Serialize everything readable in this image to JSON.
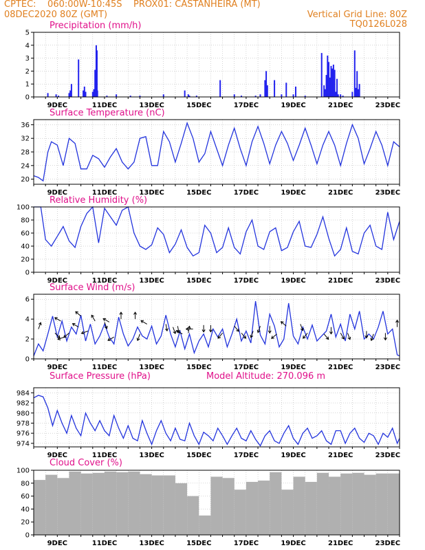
{
  "header": {
    "line1_left": "CPTEC:    060:00W-10:45S    PROX01: CASTANHEIRA (MT)",
    "line2_left": "08DEC2020 80Z (GMT)",
    "line2_right": "Vertical Grid Line: 80Z",
    "line3_right": "TQ0126L028"
  },
  "colors": {
    "header": "#e08020",
    "title": "#e0108a",
    "line": "#2233dd",
    "bar": "#2222ee",
    "cloud": "#b0b0b0"
  },
  "chart_data": [
    {
      "type": "bar",
      "title": "Precipitation (mm/h)",
      "xlim": [
        0,
        15.5
      ],
      "ylim": [
        0,
        5
      ],
      "yticks": [
        0,
        1,
        2,
        3,
        4,
        5
      ],
      "xtick_labels": [
        "9DEC",
        "11DEC",
        "13DEC",
        "15DEC",
        "17DEC",
        "19DEC",
        "21DEC",
        "23DEC"
      ],
      "grid": true,
      "x": [
        0.6,
        0.95,
        1.05,
        1.5,
        1.55,
        1.6,
        1.9,
        2.1,
        2.15,
        2.2,
        2.5,
        2.55,
        2.6,
        2.65,
        2.68,
        2.7,
        3.1,
        3.5,
        4.1,
        4.5,
        5.5,
        6.4,
        6.55,
        6.6,
        6.9,
        7.9,
        8.5,
        8.8,
        9.4,
        9.6,
        9.8,
        9.85,
        9.9,
        10.2,
        10.5,
        10.7,
        11.0,
        11.1,
        11.5,
        12.2,
        12.3,
        12.35,
        12.4,
        12.45,
        12.5,
        12.55,
        12.6,
        12.65,
        12.7,
        12.75,
        12.8,
        12.85,
        12.9,
        13.0,
        13.1,
        13.5,
        13.6,
        13.65,
        13.7,
        13.75,
        13.8
      ],
      "values": [
        0.3,
        0.2,
        0.1,
        0.3,
        0.5,
        1.0,
        2.9,
        0.5,
        0.8,
        0.4,
        0.4,
        0.6,
        2.1,
        4.0,
        3.6,
        0.5,
        0.1,
        0.2,
        0.1,
        0.1,
        0.2,
        0.5,
        0.2,
        0.1,
        0.1,
        1.3,
        0.2,
        0.1,
        0.1,
        0.2,
        1.3,
        2.0,
        0.9,
        1.3,
        0.2,
        1.1,
        0.2,
        0.8,
        0.1,
        3.4,
        0.9,
        0.6,
        1.7,
        3.2,
        2.7,
        1.5,
        2.4,
        2.2,
        2.5,
        2.1,
        0.4,
        1.4,
        0.2,
        0.2,
        0.1,
        0.4,
        3.6,
        0.7,
        2.0,
        0.6,
        1.0
      ]
    },
    {
      "type": "line",
      "title": "Surface Temperature (nC)",
      "xlim": [
        0,
        15.5
      ],
      "ylim": [
        18.5,
        37.5
      ],
      "yticks": [
        20,
        24,
        28,
        32,
        36
      ],
      "xtick_labels": [
        "9DEC",
        "11DEC",
        "13DEC",
        "15DEC",
        "17DEC",
        "19DEC",
        "21DEC",
        "23DEC"
      ],
      "grid": true,
      "x": [
        0,
        0.2,
        0.4,
        0.6,
        0.75,
        1.0,
        1.25,
        1.5,
        1.75,
        2.0,
        2.25,
        2.5,
        2.75,
        3.0,
        3.25,
        3.5,
        3.75,
        4.0,
        4.25,
        4.5,
        4.75,
        5.0,
        5.25,
        5.5,
        5.75,
        6.0,
        6.25,
        6.5,
        6.75,
        7.0,
        7.25,
        7.5,
        7.75,
        8.0,
        8.25,
        8.5,
        8.75,
        9.0,
        9.25,
        9.5,
        9.75,
        10.0,
        10.25,
        10.5,
        10.75,
        11.0,
        11.25,
        11.5,
        11.75,
        12.0,
        12.25,
        12.5,
        12.75,
        13.0,
        13.25,
        13.5,
        13.75,
        14.0,
        14.25,
        14.5,
        14.75,
        15.0,
        15.25,
        15.5
      ],
      "values": [
        21,
        20.5,
        19.5,
        28,
        31,
        30,
        24,
        32,
        30.5,
        23,
        23,
        27,
        26,
        23.5,
        26.5,
        29,
        25,
        23,
        25,
        32,
        32.5,
        24,
        24,
        34,
        31,
        25,
        30.5,
        36.5,
        32,
        25,
        27.5,
        34,
        29,
        24,
        30,
        35,
        29,
        24,
        31,
        35.5,
        30.5,
        24.5,
        30,
        34,
        30.5,
        25.5,
        30,
        35,
        30,
        24.5,
        30,
        34,
        30,
        24,
        30.5,
        36,
        32,
        24.5,
        29,
        34,
        30,
        24,
        31,
        29.5
      ]
    },
    {
      "type": "line",
      "title": "Relative Humidity (%)",
      "xlim": [
        0,
        15.5
      ],
      "ylim": [
        0,
        100
      ],
      "yticks": [
        0,
        20,
        40,
        60,
        80,
        100
      ],
      "xtick_labels": [
        "9DEC",
        "11DEC",
        "13DEC",
        "15DEC",
        "17DEC",
        "19DEC",
        "21DEC",
        "23DEC"
      ],
      "grid": true,
      "x": [
        0,
        0.3,
        0.5,
        0.75,
        1.0,
        1.25,
        1.5,
        1.75,
        2.0,
        2.25,
        2.5,
        2.75,
        3.0,
        3.25,
        3.5,
        3.75,
        4.0,
        4.25,
        4.5,
        4.75,
        5.0,
        5.25,
        5.5,
        5.75,
        6.0,
        6.25,
        6.5,
        6.75,
        7.0,
        7.25,
        7.5,
        7.75,
        8.0,
        8.25,
        8.5,
        8.75,
        9.0,
        9.25,
        9.5,
        9.75,
        10.0,
        10.25,
        10.5,
        10.75,
        11.0,
        11.25,
        11.5,
        11.75,
        12.0,
        12.25,
        12.5,
        12.75,
        13.0,
        13.25,
        13.5,
        13.75,
        14.0,
        14.25,
        14.5,
        14.75,
        15.0,
        15.25,
        15.5
      ],
      "values": [
        100,
        100,
        50,
        40,
        55,
        70,
        48,
        38,
        70,
        90,
        100,
        45,
        98,
        85,
        72,
        95,
        100,
        60,
        40,
        35,
        42,
        68,
        58,
        30,
        43,
        65,
        38,
        25,
        30,
        72,
        60,
        30,
        38,
        68,
        38,
        28,
        62,
        80,
        40,
        35,
        62,
        68,
        33,
        38,
        62,
        78,
        40,
        38,
        58,
        85,
        52,
        25,
        35,
        68,
        32,
        28,
        60,
        72,
        40,
        35,
        92,
        50,
        78
      ]
    },
    {
      "type": "line",
      "title": "Surface Wind (m/s)",
      "xlim": [
        0,
        15.5
      ],
      "ylim": [
        0,
        6.5
      ],
      "yticks": [
        0,
        2,
        4,
        6
      ],
      "xtick_labels": [
        "9DEC",
        "11DEC",
        "13DEC",
        "15DEC",
        "17DEC",
        "19DEC",
        "21DEC",
        "23DEC"
      ],
      "grid": true,
      "x": [
        0,
        0.2,
        0.4,
        0.6,
        0.8,
        1.0,
        1.2,
        1.4,
        1.6,
        1.8,
        2.0,
        2.2,
        2.4,
        2.6,
        2.8,
        3.0,
        3.2,
        3.4,
        3.6,
        3.8,
        4.0,
        4.2,
        4.4,
        4.6,
        4.8,
        5.0,
        5.2,
        5.4,
        5.6,
        5.8,
        6.0,
        6.2,
        6.4,
        6.6,
        6.8,
        7.0,
        7.2,
        7.4,
        7.6,
        7.8,
        8.0,
        8.2,
        8.4,
        8.6,
        8.8,
        9.0,
        9.2,
        9.4,
        9.6,
        9.8,
        10.0,
        10.2,
        10.4,
        10.6,
        10.8,
        11.0,
        11.2,
        11.4,
        11.6,
        11.8,
        12.0,
        12.2,
        12.4,
        12.6,
        12.8,
        13.0,
        13.2,
        13.4,
        13.6,
        13.8,
        14.0,
        14.2,
        14.4,
        14.6,
        14.8,
        15.0,
        15.2,
        15.4,
        15.5
      ],
      "values": [
        0.3,
        1.5,
        0.8,
        2.5,
        4.3,
        2.2,
        3.8,
        1.8,
        3.2,
        2.5,
        4.4,
        1.8,
        3.5,
        1.5,
        2.3,
        3.5,
        2.2,
        1.5,
        4.2,
        2.5,
        1.3,
        2.0,
        3.2,
        2.3,
        2.0,
        3.3,
        1.5,
        2.3,
        4.4,
        2.5,
        1.2,
        2.8,
        1.0,
        2.5,
        0.6,
        1.8,
        2.5,
        1.2,
        3.0,
        2.2,
        3.0,
        1.2,
        2.5,
        4.0,
        1.8,
        2.8,
        1.6,
        5.8,
        2.4,
        1.5,
        4.5,
        3.3,
        1.2,
        2.0,
        5.6,
        2.3,
        1.5,
        3.2,
        2.0,
        3.4,
        1.8,
        2.3,
        2.8,
        4.5,
        2.2,
        3.5,
        1.8,
        4.5,
        3.0,
        4.8,
        2.0,
        2.5,
        2.0,
        3.2,
        4.8,
        2.5,
        3.0,
        0.4,
        0.3
      ],
      "arrows": [
        {
          "x": 0.2,
          "y": 3.0,
          "dir": 20
        },
        {
          "x": 0.9,
          "y": 2.6,
          "dir": 135
        },
        {
          "x": 1.15,
          "y": 3.8,
          "dir": 300
        },
        {
          "x": 1.3,
          "y": 2.2,
          "dir": 250
        },
        {
          "x": 1.5,
          "y": 2.6,
          "dir": 230
        },
        {
          "x": 1.9,
          "y": 3.2,
          "dir": 300
        },
        {
          "x": 2.0,
          "y": 4.3,
          "dir": 310
        },
        {
          "x": 2.3,
          "y": 2.8,
          "dir": 250
        },
        {
          "x": 2.6,
          "y": 3.8,
          "dir": 330
        },
        {
          "x": 3.0,
          "y": 3.7,
          "dir": 160
        },
        {
          "x": 3.2,
          "y": 3.7,
          "dir": 300
        },
        {
          "x": 3.4,
          "y": 2.2,
          "dir": 240
        },
        {
          "x": 3.7,
          "y": 4.0,
          "dir": 0
        },
        {
          "x": 4.3,
          "y": 4.0,
          "dir": 0
        },
        {
          "x": 4.5,
          "y": 2.5,
          "dir": 200
        },
        {
          "x": 4.8,
          "y": 3.5,
          "dir": 300
        },
        {
          "x": 5.6,
          "y": 3.5,
          "dir": 170
        },
        {
          "x": 5.9,
          "y": 3.2,
          "dir": 160
        },
        {
          "x": 6.1,
          "y": 3.3,
          "dir": 170
        },
        {
          "x": 6.3,
          "y": 2.5,
          "dir": 300
        },
        {
          "x": 6.55,
          "y": 2.6,
          "dir": 10
        },
        {
          "x": 6.75,
          "y": 3.0,
          "dir": 270
        },
        {
          "x": 7.2,
          "y": 3.4,
          "dir": 180
        },
        {
          "x": 7.5,
          "y": 3.4,
          "dir": 180
        },
        {
          "x": 8.0,
          "y": 2.6,
          "dir": 220
        },
        {
          "x": 8.5,
          "y": 3.3,
          "dir": 140
        },
        {
          "x": 8.8,
          "y": 2.6,
          "dir": 140
        },
        {
          "x": 9.3,
          "y": 2.8,
          "dir": 200
        },
        {
          "x": 9.6,
          "y": 3.3,
          "dir": 200
        },
        {
          "x": 10.0,
          "y": 3.3,
          "dir": 180
        },
        {
          "x": 10.3,
          "y": 2.5,
          "dir": 230
        },
        {
          "x": 10.7,
          "y": 3.3,
          "dir": 310
        },
        {
          "x": 11.3,
          "y": 3.5,
          "dir": 160
        },
        {
          "x": 11.6,
          "y": 2.6,
          "dir": 220
        },
        {
          "x": 12.3,
          "y": 2.5,
          "dir": 140
        },
        {
          "x": 12.6,
          "y": 3.2,
          "dir": 180
        },
        {
          "x": 13.0,
          "y": 2.6,
          "dir": 150
        },
        {
          "x": 13.3,
          "y": 2.6,
          "dir": 160
        },
        {
          "x": 14.1,
          "y": 2.8,
          "dir": 180
        },
        {
          "x": 14.4,
          "y": 2.5,
          "dir": 200
        },
        {
          "x": 14.9,
          "y": 2.6,
          "dir": 180
        },
        {
          "x": 15.4,
          "y": 3.2,
          "dir": 0
        }
      ]
    },
    {
      "type": "line",
      "title": "Surface Pressure (hPa)",
      "annotation": "Model Altitude: 270.096 m",
      "xlim": [
        0,
        15.5
      ],
      "ylim": [
        973.3,
        985
      ],
      "yticks": [
        974,
        976,
        978,
        980,
        982,
        984
      ],
      "xtick_labels": [
        "9DEC",
        "11DEC",
        "13DEC",
        "15DEC",
        "17DEC",
        "19DEC",
        "21DEC",
        "23DEC"
      ],
      "grid": true,
      "x": [
        0,
        0.2,
        0.4,
        0.6,
        0.8,
        1.0,
        1.2,
        1.4,
        1.6,
        1.8,
        2.0,
        2.2,
        2.4,
        2.6,
        2.8,
        3.0,
        3.2,
        3.4,
        3.6,
        3.8,
        4.0,
        4.2,
        4.4,
        4.6,
        4.8,
        5.0,
        5.2,
        5.4,
        5.6,
        5.8,
        6.0,
        6.2,
        6.4,
        6.6,
        6.8,
        7.0,
        7.2,
        7.4,
        7.6,
        7.8,
        8.0,
        8.2,
        8.4,
        8.6,
        8.8,
        9.0,
        9.2,
        9.4,
        9.6,
        9.8,
        10.0,
        10.2,
        10.4,
        10.6,
        10.8,
        11.0,
        11.2,
        11.4,
        11.6,
        11.8,
        12.0,
        12.2,
        12.4,
        12.6,
        12.8,
        13.0,
        13.2,
        13.4,
        13.6,
        13.8,
        14.0,
        14.2,
        14.4,
        14.6,
        14.8,
        15.0,
        15.2,
        15.4,
        15.5
      ],
      "values": [
        983,
        983.5,
        983.2,
        981,
        977.5,
        980.5,
        978,
        976,
        979.5,
        977,
        975.5,
        980,
        978,
        976.5,
        978.5,
        976.5,
        975.5,
        979.5,
        977,
        975,
        977.5,
        975,
        974.5,
        978.5,
        976,
        973.8,
        976.5,
        978.5,
        976,
        974.5,
        977,
        974.8,
        974.5,
        978,
        975.5,
        973.8,
        976.2,
        975.5,
        974.5,
        977,
        975.5,
        973.8,
        975.5,
        977,
        975,
        974.5,
        976.5,
        974.8,
        973.5,
        975.5,
        976.5,
        974.5,
        974,
        976,
        977.5,
        975,
        973.8,
        976,
        977,
        975,
        975.5,
        976.5,
        974.5,
        973.8,
        976.5,
        976.5,
        974,
        976,
        977,
        975,
        974.2,
        976,
        975.5,
        973.8,
        976,
        975.2,
        977,
        974,
        975
      ]
    },
    {
      "type": "bar",
      "title": "Cloud Cover (%)",
      "xlim": [
        0,
        15.5
      ],
      "ylim": [
        0,
        100
      ],
      "yticks": [
        0,
        20,
        40,
        60,
        80,
        100
      ],
      "xtick_labels": [
        "9DEC",
        "11DEC",
        "13DEC",
        "15DEC",
        "17DEC",
        "19DEC",
        "21DEC",
        "23DEC"
      ],
      "grid": true,
      "x": [
        0.25,
        0.75,
        1.25,
        1.75,
        2.25,
        2.75,
        3.25,
        3.75,
        4.25,
        4.75,
        5.25,
        5.75,
        6.25,
        6.75,
        7.25,
        7.75,
        8.25,
        8.75,
        9.25,
        9.75,
        10.25,
        10.75,
        11.25,
        11.75,
        12.25,
        12.75,
        13.25,
        13.75,
        14.25,
        14.75,
        15.25
      ],
      "values": [
        85,
        93,
        88,
        98,
        95,
        96,
        98,
        97,
        98,
        94,
        92,
        92,
        80,
        60,
        30,
        90,
        88,
        70,
        82,
        84,
        97,
        70,
        90,
        82,
        96,
        90,
        95,
        96,
        93,
        95,
        95
      ]
    }
  ]
}
